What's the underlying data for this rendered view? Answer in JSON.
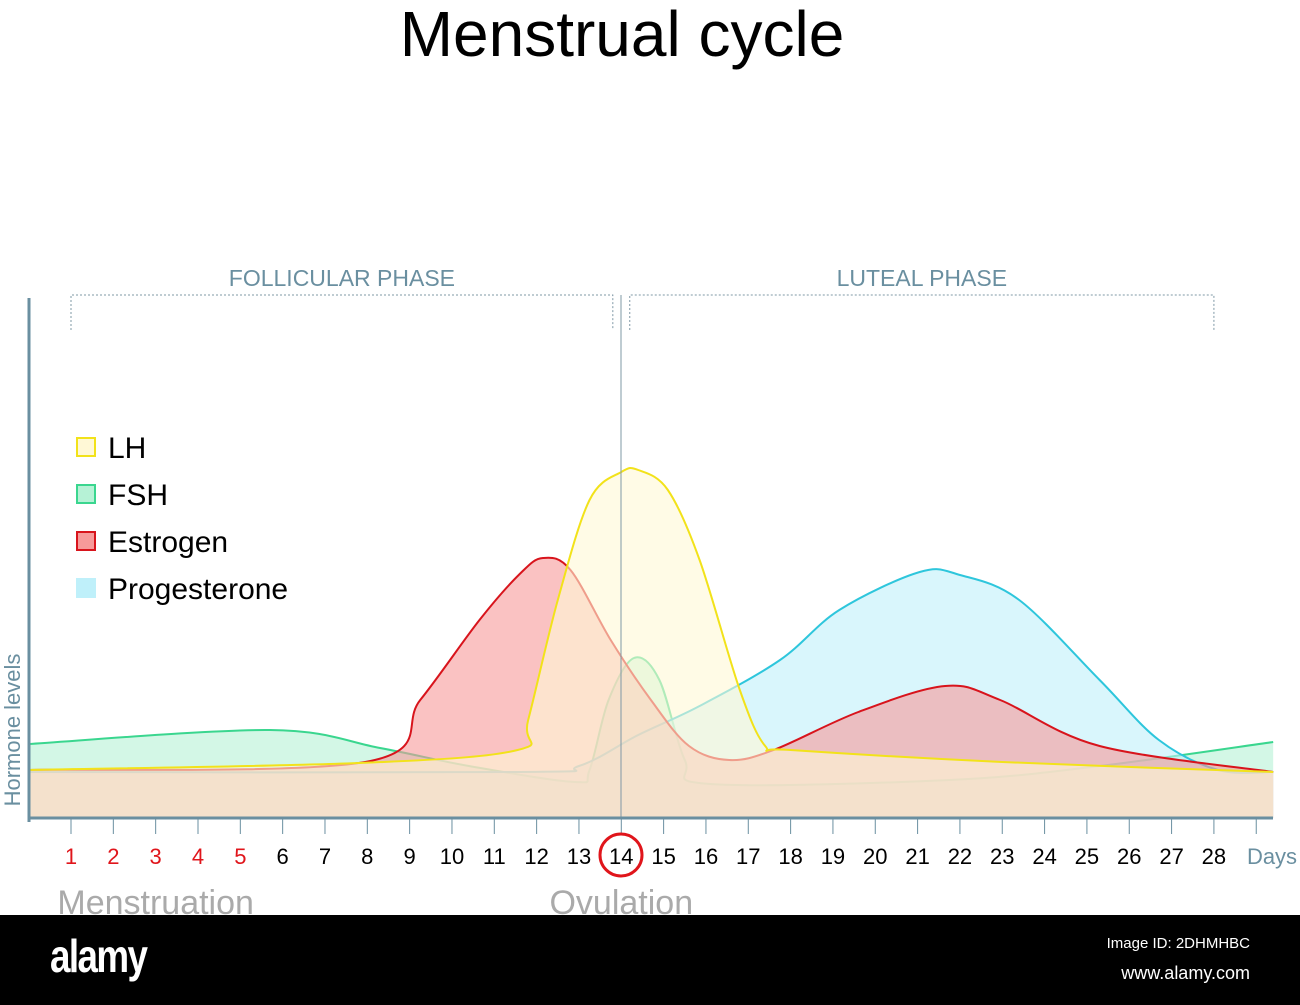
{
  "chart_data": {
    "type": "area",
    "title": "Menstrual cycle",
    "xlabel": "Days",
    "ylabel": "Hormone levels",
    "xlim": [
      0,
      29.4
    ],
    "ylim": [
      0,
      100
    ],
    "x_ticks": [
      1,
      2,
      3,
      4,
      5,
      6,
      7,
      8,
      9,
      10,
      11,
      12,
      13,
      14,
      15,
      16,
      17,
      18,
      19,
      20,
      21,
      22,
      23,
      24,
      25,
      26,
      27,
      28
    ],
    "red_ticks": [
      1,
      2,
      3,
      4,
      5
    ],
    "highlighted_tick": 14,
    "phases": [
      {
        "label": "FOLLICULAR PHASE",
        "from": 1,
        "to": 13.8
      },
      {
        "label": "LUTEAL PHASE",
        "from": 14.2,
        "to": 28
      }
    ],
    "annotations": [
      {
        "text": "Menstruation",
        "x": 3
      },
      {
        "text": "Ovulation",
        "x": 14
      }
    ],
    "legend_position": "left",
    "series": [
      {
        "name": "FSH",
        "stroke": "#3ad68f",
        "fill": "#b6f2d6",
        "points": [
          [
            0,
            18.5
          ],
          [
            5.7,
            22
          ],
          [
            8.3,
            17.5
          ],
          [
            10.4,
            13
          ],
          [
            12.9,
            9
          ],
          [
            13.25,
            12
          ],
          [
            13.7,
            29.5
          ],
          [
            14.3,
            40
          ],
          [
            14.9,
            34.5
          ],
          [
            15.5,
            14.5
          ],
          [
            16.1,
            8.5
          ],
          [
            21.75,
            9.5
          ],
          [
            25.3,
            13
          ],
          [
            29.4,
            19
          ]
        ]
      },
      {
        "name": "Progesterone",
        "stroke": "#2ec6dc",
        "fill": "#bff0fa",
        "points": [
          [
            0,
            11.5
          ],
          [
            11.6,
            11.5
          ],
          [
            13,
            13
          ],
          [
            14.4,
            20.75
          ],
          [
            15.85,
            28
          ],
          [
            17.75,
            39.5
          ],
          [
            19.15,
            52
          ],
          [
            21.05,
            61.5
          ],
          [
            22,
            60.75
          ],
          [
            23.4,
            54.5
          ],
          [
            25.3,
            34.5
          ],
          [
            26.7,
            19.5
          ],
          [
            28.1,
            12
          ],
          [
            29.4,
            11.5
          ]
        ]
      },
      {
        "name": "Estrogen",
        "stroke": "#d8141c",
        "fill": "#f79a9a",
        "points": [
          [
            0,
            12
          ],
          [
            7.95,
            14
          ],
          [
            9.25,
            29.5
          ],
          [
            10.65,
            49.5
          ],
          [
            11.6,
            61
          ],
          [
            12.15,
            65
          ],
          [
            12.8,
            62
          ],
          [
            13.75,
            44.5
          ],
          [
            14.7,
            29.5
          ],
          [
            15.6,
            18
          ],
          [
            16.55,
            14.5
          ],
          [
            17.6,
            17
          ],
          [
            19.6,
            26.5
          ],
          [
            21.65,
            33
          ],
          [
            22.95,
            29.5
          ],
          [
            25.3,
            18
          ],
          [
            29.4,
            11.5
          ]
        ]
      },
      {
        "name": "LH",
        "stroke": "#f2e21a",
        "fill": "#fff8d6",
        "points": [
          [
            0,
            12
          ],
          [
            7.8,
            13.75
          ],
          [
            11.55,
            17
          ],
          [
            11.8,
            24.5
          ],
          [
            12.5,
            54.5
          ],
          [
            13.25,
            79.5
          ],
          [
            14,
            86.5
          ],
          [
            14.4,
            87
          ],
          [
            15.1,
            82
          ],
          [
            15.85,
            64.5
          ],
          [
            16.8,
            32
          ],
          [
            17.4,
            18
          ],
          [
            18,
            17
          ],
          [
            23,
            14
          ],
          [
            29.4,
            11.5
          ]
        ]
      }
    ]
  },
  "watermark": {
    "logo": "alamy",
    "image_id": "Image ID: 2DHMHBC",
    "url": "www.alamy.com"
  }
}
